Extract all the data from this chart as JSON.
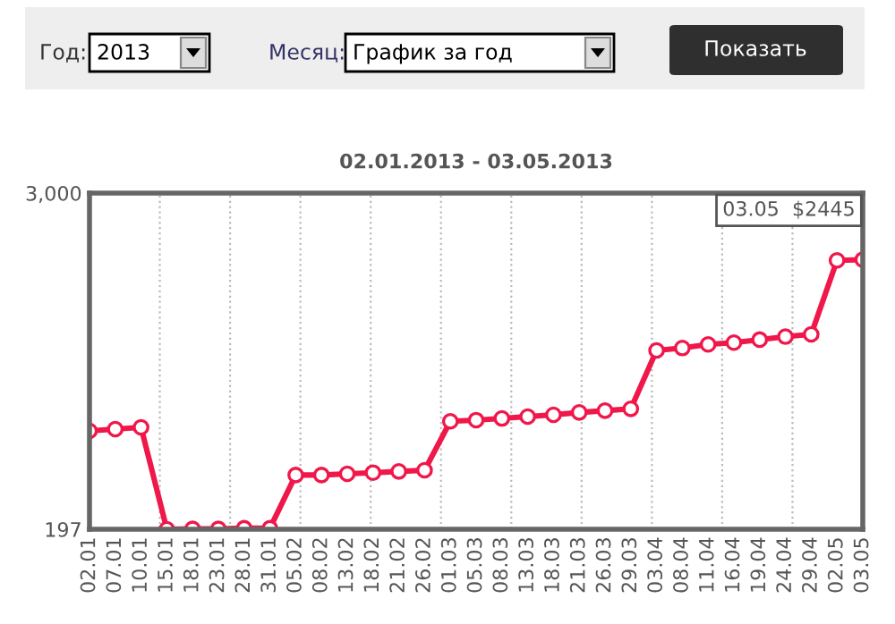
{
  "chart_data": {
    "type": "line",
    "title": "02.01.2013 - 03.05.2013",
    "categories": [
      "02.01",
      "07.01",
      "10.01",
      "15.01",
      "18.01",
      "23.01",
      "28.01",
      "31.01",
      "05.02",
      "08.02",
      "13.02",
      "18.02",
      "21.02",
      "26.02",
      "01.03",
      "05.03",
      "08.03",
      "13.03",
      "18.03",
      "21.03",
      "26.03",
      "29.03",
      "03.04",
      "08.04",
      "11.04",
      "16.04",
      "19.04",
      "24.04",
      "29.04",
      "02.05",
      "03.05"
    ],
    "series": [
      {
        "color": "#f0174a",
        "values": [
          1017,
          1032,
          1047,
          197,
          200,
          200,
          205,
          205,
          649,
          649,
          659,
          669,
          679,
          689,
          1097,
          1107,
          1121,
          1136,
          1151,
          1171,
          1186,
          1201,
          1688,
          1708,
          1738,
          1753,
          1778,
          1803,
          1822,
          2439,
          2445
        ]
      }
    ],
    "ylim": [
      197,
      3000
    ],
    "yticks": [
      197,
      {
        "value": 3000,
        "label": "3,000"
      }
    ],
    "grid": "x",
    "marker": "circle",
    "line_style": "solid",
    "legend": false,
    "annotations": [
      "Год:",
      "2013",
      "Месяц:",
      "График за год",
      "Показать",
      {
        "text": "03.05  $2445",
        "x": "03.05",
        "y": 2445
      }
    ]
  }
}
